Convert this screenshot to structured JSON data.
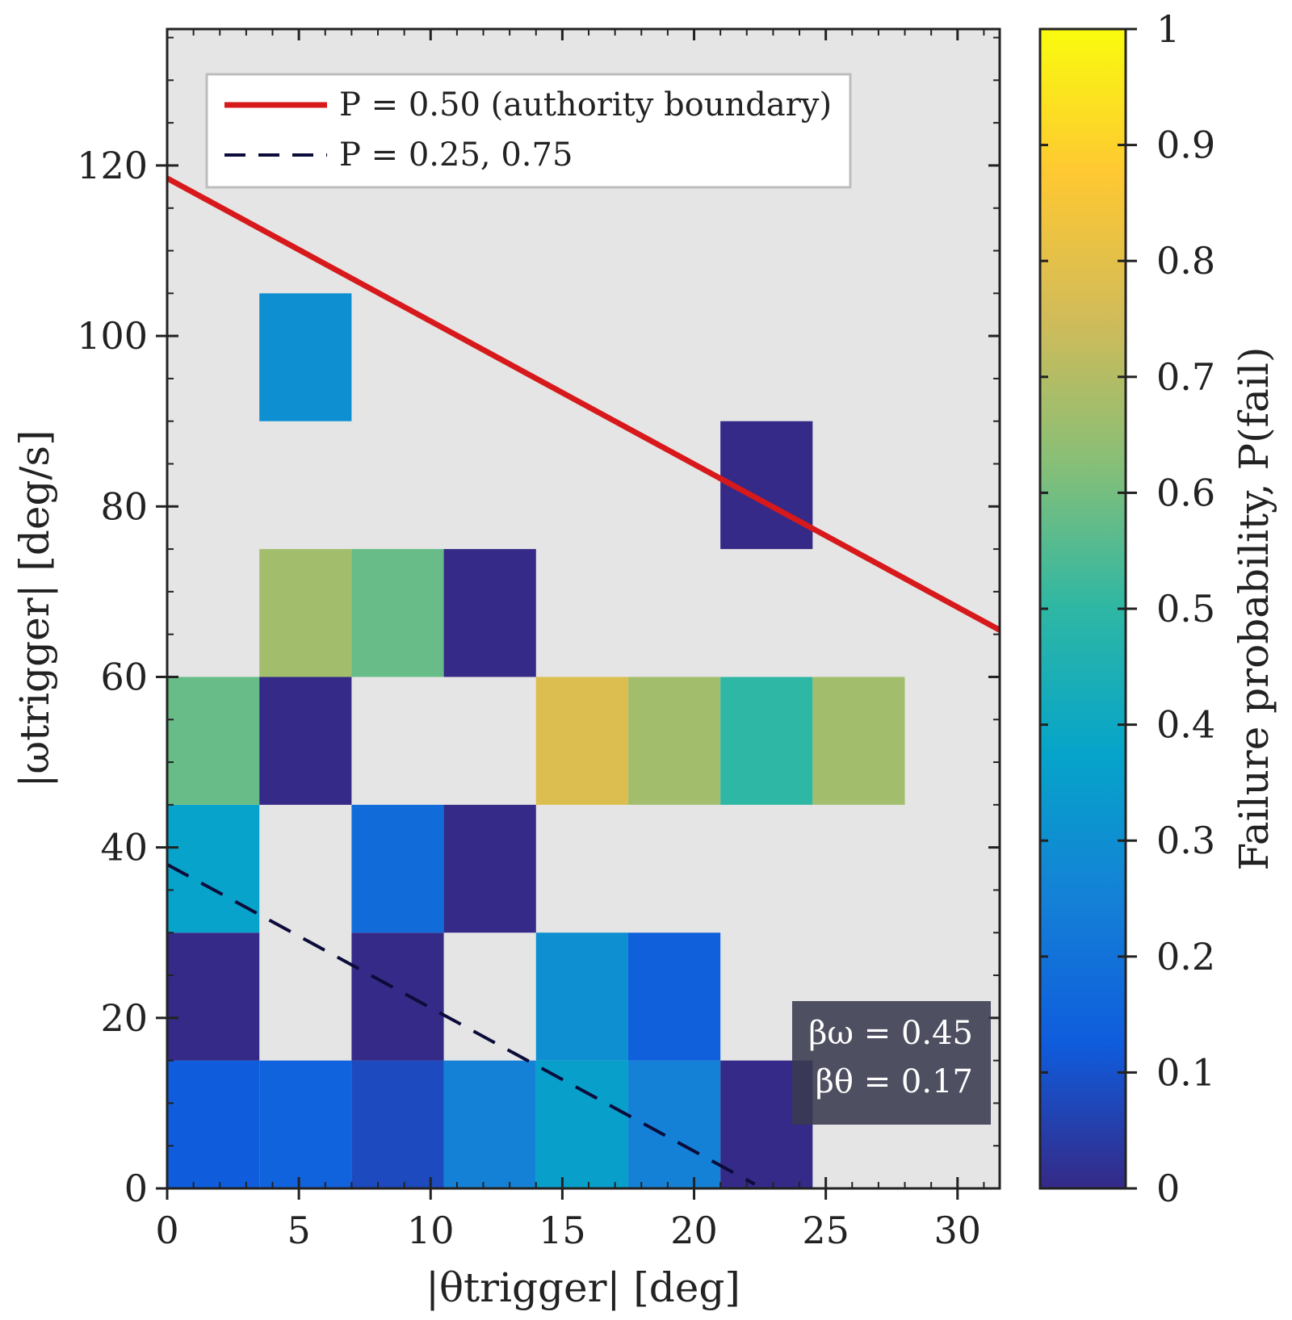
{
  "chart_data": {
    "type": "heatmap",
    "xlabel": "|θtrigger| [deg]",
    "ylabel": "|ωtrigger| [deg/s]",
    "xlim": [
      0,
      31.6
    ],
    "ylim": [
      0,
      136
    ],
    "x_ticks": [
      0,
      5,
      10,
      15,
      20,
      25,
      30
    ],
    "y_ticks": [
      0,
      20,
      40,
      60,
      80,
      100,
      120
    ],
    "x_bin_edges": [
      0,
      3.5,
      7,
      10.5,
      14,
      17.5,
      21,
      24.5,
      28
    ],
    "y_bin_edges": [
      0,
      15,
      30,
      45,
      60,
      75,
      90,
      105
    ],
    "cells": [
      {
        "x": [
          0,
          3.5
        ],
        "y": [
          0,
          15
        ],
        "value": 0.13
      },
      {
        "x": [
          3.5,
          7
        ],
        "y": [
          0,
          15
        ],
        "value": 0.15
      },
      {
        "x": [
          7,
          10.5
        ],
        "y": [
          0,
          15
        ],
        "value": 0.08
      },
      {
        "x": [
          10.5,
          14
        ],
        "y": [
          0,
          15
        ],
        "value": 0.25
      },
      {
        "x": [
          14,
          17.5
        ],
        "y": [
          0,
          15
        ],
        "value": 0.36
      },
      {
        "x": [
          17.5,
          21
        ],
        "y": [
          0,
          15
        ],
        "value": 0.25
      },
      {
        "x": [
          21,
          24.5
        ],
        "y": [
          0,
          15
        ],
        "value": 0.0
      },
      {
        "x": [
          0,
          3.5
        ],
        "y": [
          15,
          30
        ],
        "value": 0.0
      },
      {
        "x": [
          7,
          10.5
        ],
        "y": [
          15,
          30
        ],
        "value": 0.0
      },
      {
        "x": [
          14,
          17.5
        ],
        "y": [
          15,
          30
        ],
        "value": 0.3
      },
      {
        "x": [
          17.5,
          21
        ],
        "y": [
          15,
          30
        ],
        "value": 0.14
      },
      {
        "x": [
          0,
          3.5
        ],
        "y": [
          30,
          45
        ],
        "value": 0.37
      },
      {
        "x": [
          7,
          10.5
        ],
        "y": [
          30,
          45
        ],
        "value": 0.18
      },
      {
        "x": [
          10.5,
          14
        ],
        "y": [
          30,
          45
        ],
        "value": 0.0
      },
      {
        "x": [
          0,
          3.5
        ],
        "y": [
          45,
          60
        ],
        "value": 0.58
      },
      {
        "x": [
          3.5,
          7
        ],
        "y": [
          45,
          60
        ],
        "value": 0.0
      },
      {
        "x": [
          14,
          17.5
        ],
        "y": [
          45,
          60
        ],
        "value": 0.78
      },
      {
        "x": [
          17.5,
          21
        ],
        "y": [
          45,
          60
        ],
        "value": 0.67
      },
      {
        "x": [
          21,
          24.5
        ],
        "y": [
          45,
          60
        ],
        "value": 0.5
      },
      {
        "x": [
          24.5,
          28
        ],
        "y": [
          45,
          60
        ],
        "value": 0.67
      },
      {
        "x": [
          3.5,
          7
        ],
        "y": [
          60,
          75
        ],
        "value": 0.67
      },
      {
        "x": [
          7,
          10.5
        ],
        "y": [
          60,
          75
        ],
        "value": 0.58
      },
      {
        "x": [
          10.5,
          14
        ],
        "y": [
          60,
          75
        ],
        "value": 0.0
      },
      {
        "x": [
          21,
          24.5
        ],
        "y": [
          75,
          90
        ],
        "value": 0.0
      },
      {
        "x": [
          3.5,
          7
        ],
        "y": [
          90,
          105
        ],
        "value": 0.3
      }
    ],
    "lines": [
      {
        "name": "P = 0.50 (authority boundary)",
        "style": "solid",
        "color": "#d7191c",
        "x": [
          0,
          31.6
        ],
        "y": [
          118.5,
          65.5
        ]
      },
      {
        "name": "P = 0.25, 0.75",
        "style": "dashed",
        "color": "#0c0c3a",
        "x": [
          0,
          22.3
        ],
        "y": [
          38,
          0.5
        ]
      }
    ],
    "annotation": [
      "βω = 0.45",
      "βθ = 0.17"
    ],
    "background": "#e5e5e5",
    "legend_position": "upper-left",
    "colorbar": {
      "label": "Failure probability, P(fail)",
      "ticks": [
        0,
        0.1,
        0.2,
        0.3,
        0.4,
        0.5,
        0.6,
        0.7,
        0.8,
        0.9,
        1
      ],
      "tick_labels": [
        "0",
        "0.1",
        "0.2",
        "0.3",
        "0.4",
        "0.5",
        "0.6",
        "0.7",
        "0.8",
        "0.9",
        "1"
      ],
      "range": [
        0,
        1
      ],
      "colormap": [
        "#352a87",
        "#0f5cdd",
        "#1481d6",
        "#06a4ca",
        "#2eb7a4",
        "#87bf77",
        "#d1bb59",
        "#fec832",
        "#f9fb0e"
      ]
    }
  }
}
